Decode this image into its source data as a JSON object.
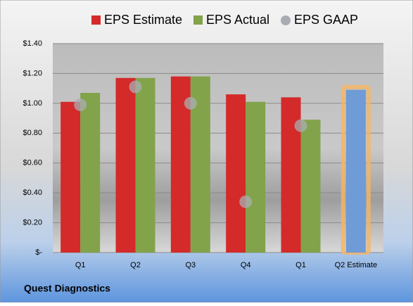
{
  "chart_data": {
    "type": "bar",
    "title": "Quest Diagnostics",
    "categories": [
      "Q1",
      "Q2",
      "Q3",
      "Q4",
      "Q1",
      "Q2 Estimate"
    ],
    "series": [
      {
        "name": "EPS Estimate",
        "color": "#d42a2a",
        "values": [
          1.01,
          1.17,
          1.18,
          1.06,
          1.04,
          1.09
        ],
        "highlight": {
          "index": 5,
          "color": "#6f9bd6",
          "glow": "#f5b561"
        }
      },
      {
        "name": "EPS Actual",
        "color": "#82a34a",
        "values": [
          1.07,
          1.17,
          1.18,
          1.01,
          0.89,
          null
        ]
      },
      {
        "name": "EPS GAAP",
        "color": "#a9adb3",
        "marker": "circle",
        "values": [
          0.99,
          1.11,
          1.0,
          0.34,
          0.85,
          null
        ]
      }
    ],
    "ylim": [
      0,
      1.4
    ],
    "yticks": [
      {
        "value": 0,
        "label": "$-"
      },
      {
        "value": 0.2,
        "label": "$0.20"
      },
      {
        "value": 0.4,
        "label": "$0.40"
      },
      {
        "value": 0.6,
        "label": "$0.60"
      },
      {
        "value": 0.8,
        "label": "$0.80"
      },
      {
        "value": 1.0,
        "label": "$1.00"
      },
      {
        "value": 1.2,
        "label": "$1.20"
      },
      {
        "value": 1.4,
        "label": "$1.40"
      }
    ],
    "grid": true,
    "legend": "top"
  }
}
